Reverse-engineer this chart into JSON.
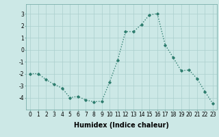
{
  "x": [
    0,
    1,
    2,
    3,
    4,
    5,
    6,
    7,
    8,
    9,
    10,
    11,
    12,
    13,
    14,
    15,
    16,
    17,
    18,
    19,
    20,
    21,
    22,
    23
  ],
  "y": [
    -2,
    -2,
    -2.5,
    -2.9,
    -3.2,
    -4.0,
    -3.9,
    -4.2,
    -4.35,
    -4.3,
    -2.7,
    -0.9,
    1.5,
    1.5,
    2.1,
    2.9,
    3.0,
    0.4,
    -0.65,
    -1.75,
    -1.7,
    -2.4,
    -3.5,
    -4.5
  ],
  "line_color": "#2e7d6e",
  "marker": "D",
  "marker_size": 1.8,
  "bg_color": "#cce8e6",
  "grid_color": "#aacfcd",
  "xlabel": "Humidex (Indice chaleur)",
  "xlim": [
    -0.5,
    23.5
  ],
  "ylim": [
    -5.0,
    3.8
  ],
  "yticks": [
    -4,
    -3,
    -2,
    -1,
    0,
    1,
    2,
    3
  ],
  "xticks": [
    0,
    1,
    2,
    3,
    4,
    5,
    6,
    7,
    8,
    9,
    10,
    11,
    12,
    13,
    14,
    15,
    16,
    17,
    18,
    19,
    20,
    21,
    22,
    23
  ],
  "tick_label_fontsize": 5.5,
  "xlabel_fontsize": 7.0,
  "line_width": 1.0
}
